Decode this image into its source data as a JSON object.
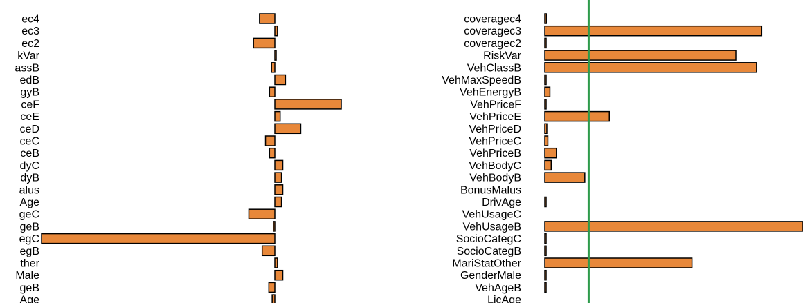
{
  "colors": {
    "bar_fill": "#E8883A",
    "bar_stroke": "#000000",
    "reference_line": "#2E9B4B"
  },
  "chart_data": [
    {
      "type": "bar",
      "orientation": "horizontal",
      "panel": "left",
      "categories": [
        "coveragec4",
        "coveragec3",
        "coveragec2",
        "RiskVar",
        "VehClassB",
        "VehMaxSpeedB",
        "VehEnergyB",
        "VehPriceF",
        "VehPriceE",
        "VehPriceD",
        "VehPriceC",
        "VehPriceB",
        "VehBodyC",
        "VehBodyB",
        "BonusMalus",
        "DrivAge",
        "VehUsageC",
        "VehUsageB",
        "SocioCategC",
        "SocioCategB",
        "MariStatOther",
        "GenderMale",
        "VehAgeB",
        "LicAge"
      ],
      "visible_labels": [
        "ec4",
        "ec3",
        "ec2",
        "kVar",
        "assB",
        "edB",
        "gyB",
        "ceF",
        "ceE",
        "ceD",
        "ceC",
        "ceB",
        "dyC",
        "dyB",
        "alus",
        "Age",
        "geC",
        "geB",
        "egC",
        "egB",
        "ther",
        "Male",
        "geB",
        "Age"
      ],
      "values": [
        -0.23,
        0.04,
        -0.32,
        0.015,
        -0.05,
        0.16,
        -0.08,
        1.0,
        0.08,
        0.39,
        -0.14,
        -0.08,
        0.12,
        0.1,
        0.12,
        0.1,
        -0.39,
        -0.02,
        -3.5,
        -0.19,
        0.04,
        0.12,
        -0.09,
        -0.04
      ],
      "xlim": [
        -3.5,
        1.0
      ],
      "title": "",
      "xlabel": "",
      "ylabel": ""
    },
    {
      "type": "bar",
      "orientation": "horizontal",
      "panel": "right",
      "categories": [
        "coveragec4",
        "coveragec3",
        "coveragec2",
        "RiskVar",
        "VehClassB",
        "VehMaxSpeedB",
        "VehEnergyB",
        "VehPriceF",
        "VehPriceE",
        "VehPriceD",
        "VehPriceC",
        "VehPriceB",
        "VehBodyC",
        "VehBodyB",
        "BonusMalus",
        "DrivAge",
        "VehUsageC",
        "VehUsageB",
        "SocioCategC",
        "SocioCategB",
        "MariStatOther",
        "GenderMale",
        "VehAgeB",
        "LicAge"
      ],
      "values": [
        0.006,
        0.84,
        0.002,
        0.74,
        0.82,
        0.002,
        0.02,
        0.002,
        0.25,
        0.008,
        0.012,
        0.045,
        0.025,
        0.155,
        0.0,
        0.002,
        0.0,
        1.0,
        0.002,
        0.002,
        0.57,
        0.002,
        0.004,
        0.0
      ],
      "reference_line": 0.17,
      "xlim": [
        0,
        1.0
      ],
      "title": "",
      "xlabel": "",
      "ylabel": ""
    }
  ]
}
